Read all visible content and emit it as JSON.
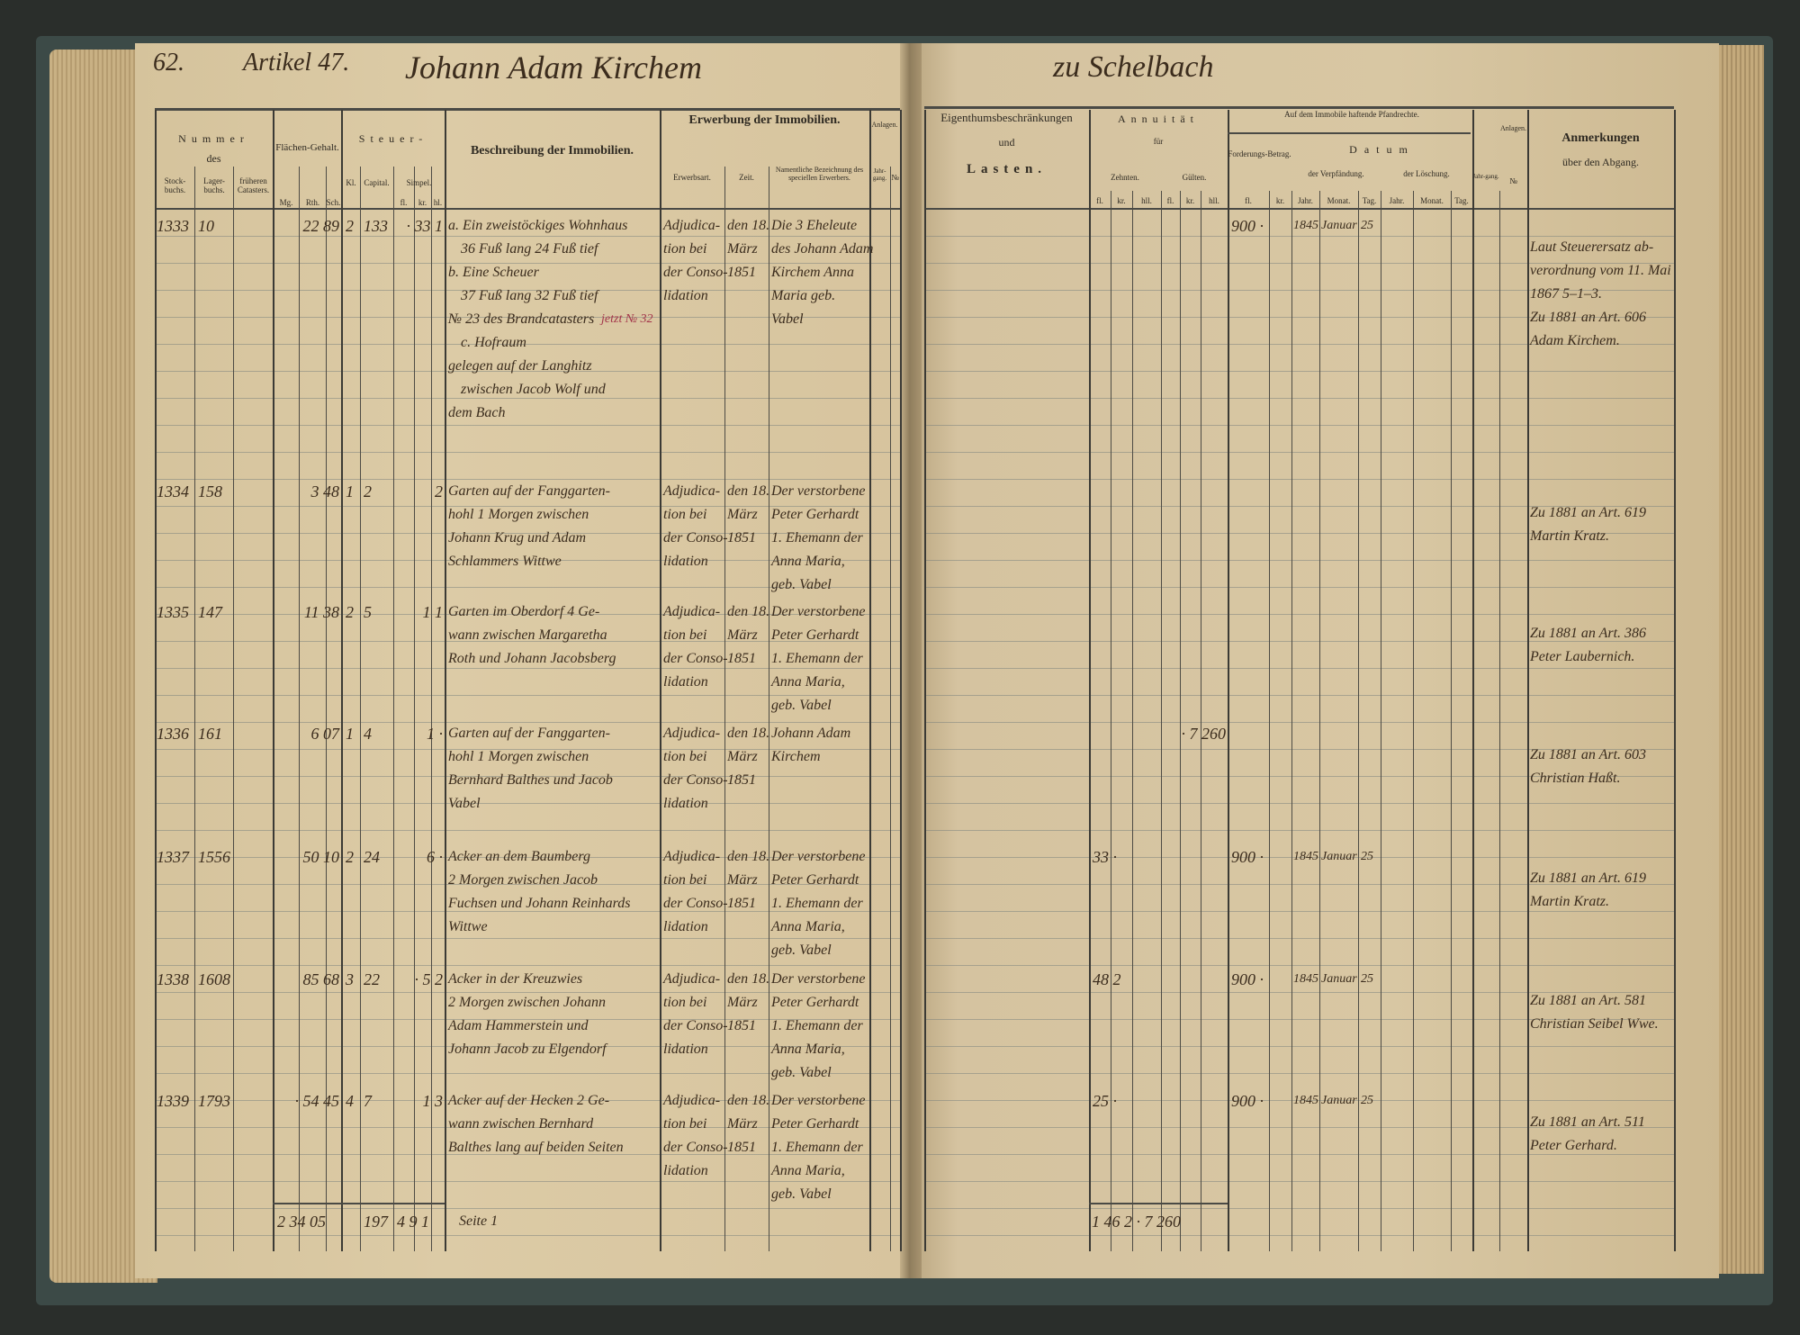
{
  "header": {
    "page_number": "62.",
    "article": "Artikel 47.",
    "owner": "Johann Adam Kirchem",
    "place": "zu Schelbach"
  },
  "columns_left": {
    "nummer": "Nummer",
    "des": "des",
    "stockbuchs": "Stock-buchs.",
    "lagerbuchs": "Lager-buchs.",
    "frueheren": "früheren Catasters.",
    "flaechen": "Flächen-Gehalt.",
    "mg": "Mg.",
    "rth": "Rth.",
    "sch": "Sch.",
    "steuer": "Steuer-",
    "kl": "Kl.",
    "capital": "Capital.",
    "simpel": "Simpel.",
    "fl": "fl.",
    "kr": "kr.",
    "hl": "hl.",
    "beschreibung": "Beschreibung der Immobilien.",
    "erwerbung": "Erwerbung der Immobilien.",
    "erwerbsart": "Erwerbsart.",
    "zeit": "Zeit.",
    "erwerber": "Namentliche Bezeichnung des speciellen Erwerbers.",
    "anlagen": "Anlagen.",
    "jahrgang": "Jahr-gang.",
    "nr": "№"
  },
  "columns_right": {
    "eigenthum": "Eigenthumsbeschränkungen",
    "und": "und",
    "lasten": "Lasten.",
    "annuitaet": "Annuität",
    "fuer": "für",
    "zehnten": "Zehnten.",
    "gueltèn": "Gülten.",
    "fl": "fl.",
    "kr": "kr.",
    "hl": "hll.",
    "pfandrechte": "Auf dem Immobile haftende Pfandrechte.",
    "forderung": "Forderungs-Betrag.",
    "datum": "Datum",
    "verpfaendung": "der Verpfändung.",
    "loeschung": "der Löschung.",
    "jahr": "Jahr.",
    "monat": "Monat.",
    "tag": "Tag.",
    "anlagen": "Anlagen.",
    "jahrgang": "Jahr-gang.",
    "nr": "№",
    "anmerkungen": "Anmerkungen",
    "abgang": "über den Abgang."
  },
  "entries": [
    {
      "stock": "1333",
      "lager": "10",
      "flaeche": "22 89",
      "kl": "2",
      "capital": "133",
      "simpel": "· 33 1",
      "description": [
        "a. Ein zweistöckiges Wohnhaus",
        "36 Fuß lang 24 Fuß tief",
        "b. Eine Scheuer",
        "37 Fuß lang 32 Fuß tief",
        "№ 23 des Brandcatasters",
        "c. Hofraum",
        "gelegen auf der Langhitz",
        "zwischen Jacob Wolf und",
        "dem Bach"
      ],
      "annotation": "jetzt № 32",
      "erwerbsart": [
        "Adjudica-",
        "tion bei",
        "der Conso-",
        "lidation"
      ],
      "zeit": [
        "den 18.",
        "März",
        "1851"
      ],
      "erwerber": [
        "Die 3 Eheleute",
        "des Johann Adam",
        "Kirchem Anna",
        "Maria geb.",
        "Vabel"
      ],
      "zehnten": "",
      "gueltèn": "",
      "betrag": "900 ·",
      "jahr": "1845",
      "monat": "Januar",
      "tag": "25",
      "remarks": [
        "Laut Steuerersatz ab-",
        "verordnung vom 11. Mai",
        "1867 5–1–3.",
        "Zu 1881 an Art. 606",
        "Adam Kirchem."
      ]
    },
    {
      "stock": "1334",
      "lager": "158",
      "flaeche": "3 48",
      "kl": "1",
      "capital": "2",
      "simpel": "2",
      "description": [
        "Garten auf der Fanggarten-",
        "hohl 1 Morgen zwischen",
        "Johann Krug und Adam",
        "Schlammers Wittwe"
      ],
      "annotation": "",
      "erwerbsart": [
        "Adjudica-",
        "tion bei",
        "der Conso-",
        "lidation"
      ],
      "zeit": [
        "den 18.",
        "März",
        "1851"
      ],
      "erwerber": [
        "Der verstorbene",
        "Peter Gerhardt",
        "1. Ehemann der",
        "Anna Maria,",
        "geb. Vabel"
      ],
      "zehnten": "",
      "gueltèn": "",
      "betrag": "",
      "jahr": "",
      "monat": "",
      "tag": "",
      "remarks": [
        "Zu 1881 an Art. 619",
        "Martin Kratz."
      ]
    },
    {
      "stock": "1335",
      "lager": "147",
      "flaeche": "11 38",
      "kl": "2",
      "capital": "5",
      "simpel": "1 1",
      "description": [
        "Garten im Oberdorf 4 Ge-",
        "wann zwischen Margaretha",
        "Roth und Johann Jacobsberg"
      ],
      "annotation": "",
      "erwerbsart": [
        "Adjudica-",
        "tion bei",
        "der Conso-",
        "lidation"
      ],
      "zeit": [
        "den 18.",
        "März",
        "1851"
      ],
      "erwerber": [
        "Der verstorbene",
        "Peter Gerhardt",
        "1. Ehemann der",
        "Anna Maria,",
        "geb. Vabel"
      ],
      "zehnten": "",
      "gueltèn": "",
      "betrag": "",
      "jahr": "",
      "monat": "",
      "tag": "",
      "remarks": [
        "Zu 1881 an Art. 386",
        "Peter Laubernich."
      ]
    },
    {
      "stock": "1336",
      "lager": "161",
      "flaeche": "6 07",
      "kl": "1",
      "capital": "4",
      "simpel": "1 ·",
      "description": [
        "Garten auf der Fanggarten-",
        "hohl 1 Morgen zwischen",
        "Bernhard Balthes und Jacob",
        "Vabel"
      ],
      "annotation": "",
      "erwerbsart": [
        "Adjudica-",
        "tion bei",
        "der Conso-",
        "lidation"
      ],
      "zeit": [
        "den 18.",
        "März",
        "1851"
      ],
      "erwerber": [
        "Johann Adam",
        "Kirchem"
      ],
      "zehnten": "",
      "gueltèn": "· 7 260",
      "betrag": "",
      "jahr": "",
      "monat": "",
      "tag": "",
      "remarks": [
        "Zu 1881 an Art. 603",
        "Christian Haßt."
      ]
    },
    {
      "stock": "1337",
      "lager": "1556",
      "flaeche": "50 10",
      "kl": "2",
      "capital": "24",
      "simpel": "6 ·",
      "description": [
        "Acker an dem Baumberg",
        "2 Morgen zwischen Jacob",
        "Fuchsen und Johann Reinhards",
        "Wittwe"
      ],
      "annotation": "",
      "erwerbsart": [
        "Adjudica-",
        "tion bei",
        "der Conso-",
        "lidation"
      ],
      "zeit": [
        "den 18.",
        "März",
        "1851"
      ],
      "erwerber": [
        "Der verstorbene",
        "Peter Gerhardt",
        "1. Ehemann der",
        "Anna Maria,",
        "geb. Vabel"
      ],
      "zehnten": "33 ·",
      "gueltèn": "",
      "betrag": "900 ·",
      "jahr": "1845",
      "monat": "Januar",
      "tag": "25",
      "remarks": [
        "Zu 1881 an Art. 619",
        "Martin Kratz."
      ]
    },
    {
      "stock": "1338",
      "lager": "1608",
      "flaeche": "85 68",
      "kl": "3",
      "capital": "22",
      "simpel": "· 5 2",
      "description": [
        "Acker in der Kreuzwies",
        "2 Morgen zwischen Johann",
        "Adam Hammerstein und",
        "Johann Jacob zu Elgendorf"
      ],
      "annotation": "",
      "erwerbsart": [
        "Adjudica-",
        "tion bei",
        "der Conso-",
        "lidation"
      ],
      "zeit": [
        "den 18.",
        "März",
        "1851"
      ],
      "erwerber": [
        "Der verstorbene",
        "Peter Gerhardt",
        "1. Ehemann der",
        "Anna Maria,",
        "geb. Vabel"
      ],
      "zehnten": "48 2",
      "gueltèn": "",
      "betrag": "900 ·",
      "jahr": "1845",
      "monat": "Januar",
      "tag": "25",
      "remarks": [
        "Zu 1881 an Art. 581",
        "Christian Seibel Wwe."
      ]
    },
    {
      "stock": "1339",
      "lager": "1793",
      "flaeche": "· 54 45",
      "kl": "4",
      "capital": "7",
      "simpel": "1 3",
      "description": [
        "Acker auf der Hecken 2 Ge-",
        "wann zwischen Bernhard",
        "Balthes lang auf beiden Seiten"
      ],
      "annotation": "",
      "erwerbsart": [
        "Adjudica-",
        "tion bei",
        "der Conso-",
        "lidation"
      ],
      "zeit": [
        "den 18.",
        "März",
        "1851"
      ],
      "erwerber": [
        "Der verstorbene",
        "Peter Gerhardt",
        "1. Ehemann der",
        "Anna Maria,",
        "geb. Vabel"
      ],
      "zehnten": "25 ·",
      "gueltèn": "",
      "betrag": "900 ·",
      "jahr": "1845",
      "monat": "Januar",
      "tag": "25",
      "remarks": [
        "Zu 1881 an Art. 511",
        "Peter Gerhard."
      ]
    }
  ],
  "totals": {
    "flaeche": "2 34 05",
    "capital": "197",
    "simpel": "4 9 1",
    "description": "Seite 1",
    "annuitaet": "1 46 2 · 7 260"
  },
  "colors": {
    "ink": "#3b2c1d",
    "paper": "#d8c7a3",
    "red_ink": "#a3354a",
    "background": "#2a2e2b"
  }
}
